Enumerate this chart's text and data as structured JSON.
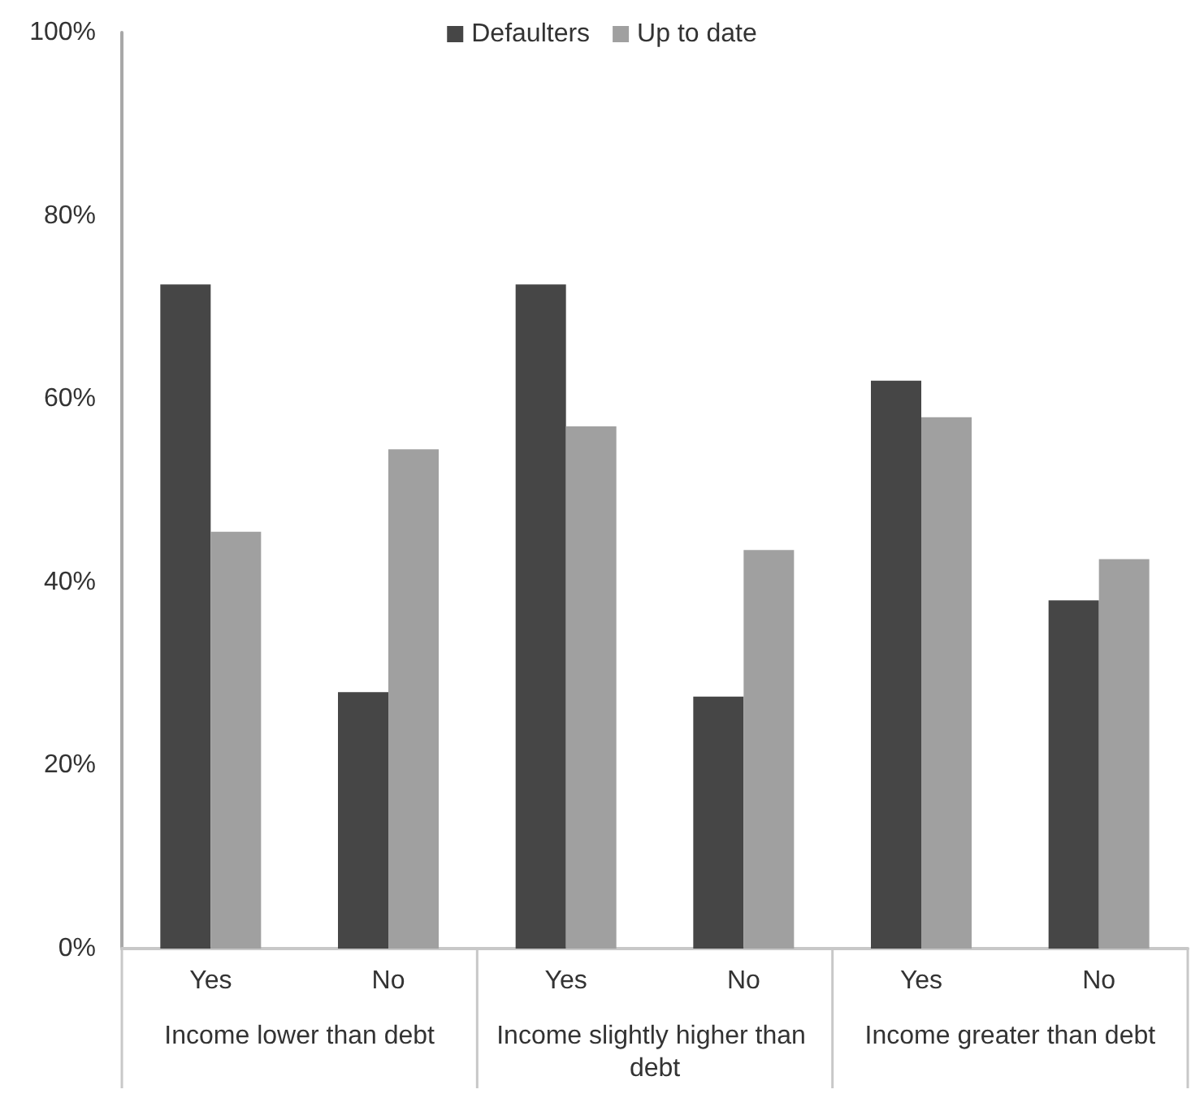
{
  "chart_data": {
    "type": "bar",
    "categories": [
      "Yes",
      "No",
      "Yes",
      "No",
      "Yes",
      "No"
    ],
    "series": [
      {
        "name": "Defaulters",
        "color": "#464646",
        "values": [
          72.5,
          28,
          72.5,
          27.5,
          62,
          38
        ]
      },
      {
        "name": "Up to date",
        "color": "#a0a0a0",
        "values": [
          45.5,
          54.5,
          57,
          43.5,
          58,
          42.5
        ]
      }
    ],
    "ylim": [
      0,
      100
    ],
    "yticks": [
      {
        "value": 0,
        "label": "0%"
      },
      {
        "value": 20,
        "label": "20%"
      },
      {
        "value": 40,
        "label": "40%"
      },
      {
        "value": 60,
        "label": "60%"
      },
      {
        "value": 80,
        "label": "80%"
      },
      {
        "value": 100,
        "label": "100%"
      }
    ],
    "grid": false,
    "legend": "top",
    "annotations": [
      "Income lower than debt",
      "Income slightly higher than debt",
      "Income greater than debt"
    ]
  }
}
